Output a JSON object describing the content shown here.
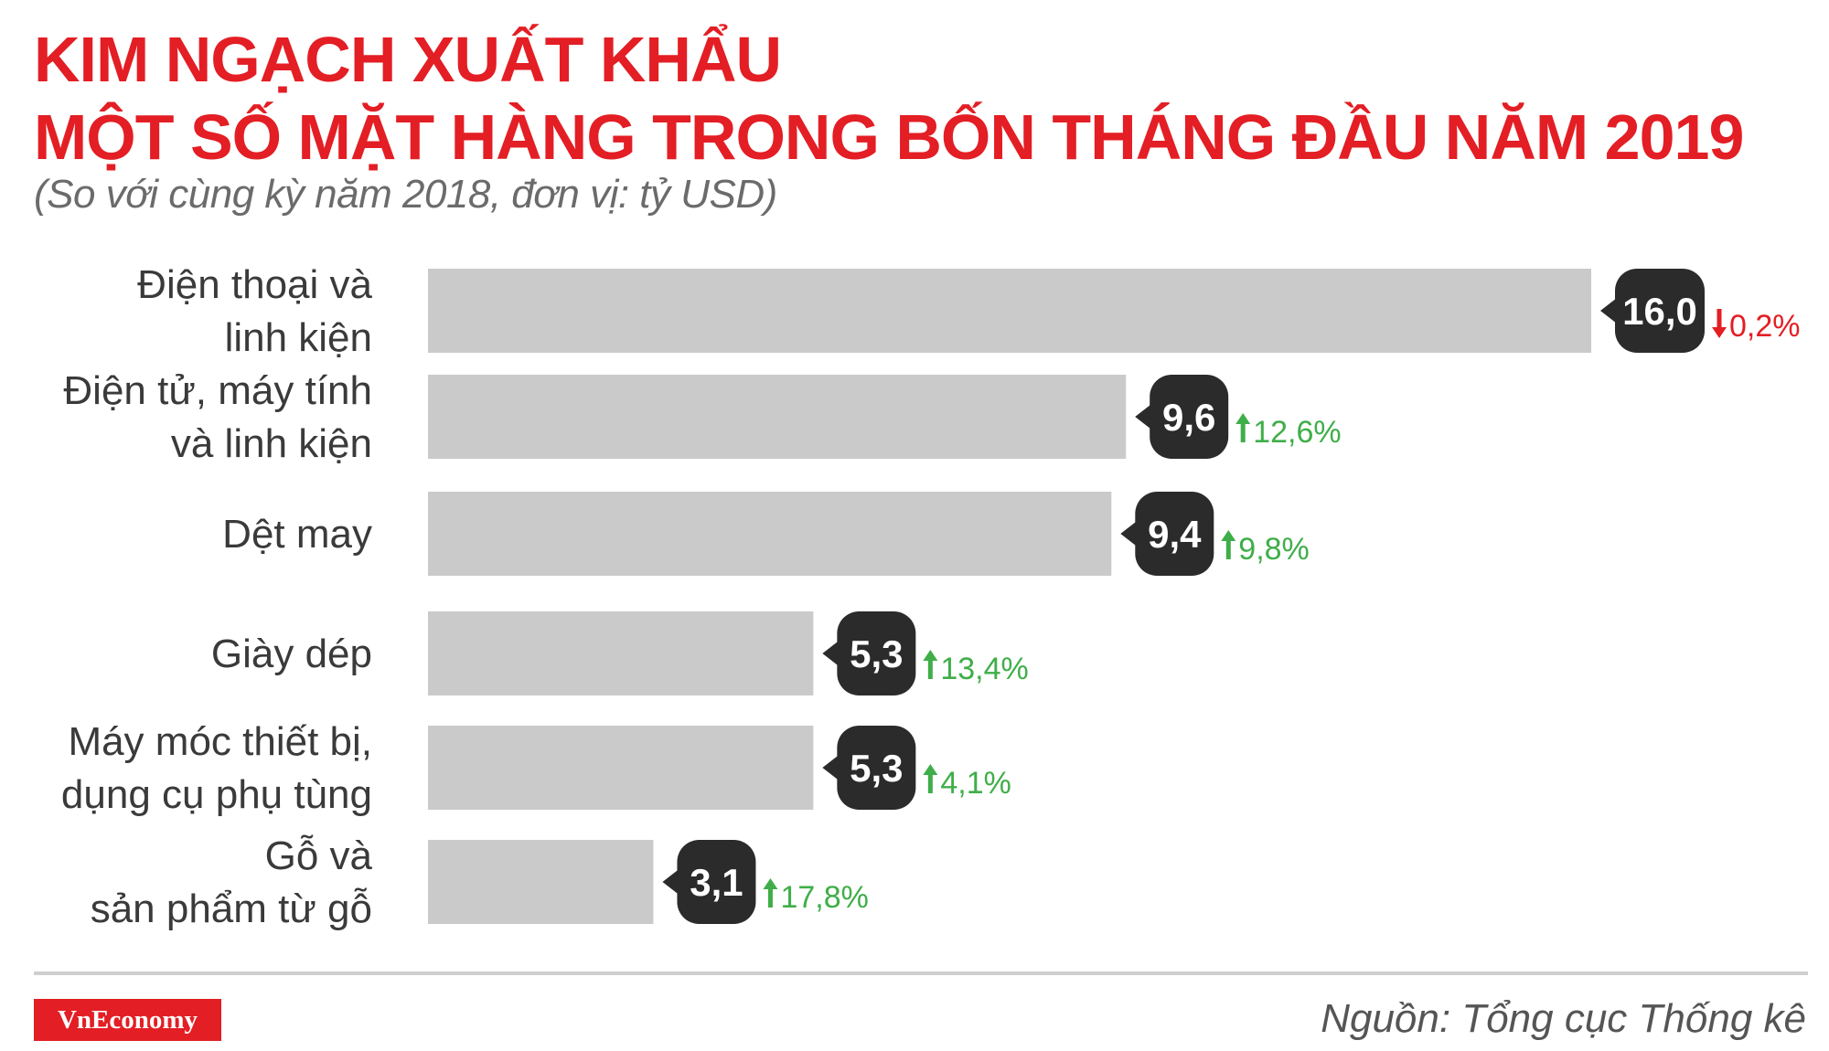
{
  "title_line1": "KIM NGẠCH XUẤT KHẨU",
  "title_line2": "MỘT SỐ MẶT HÀNG TRONG BỐN THÁNG ĐẦU NĂM 2019",
  "subtitle": "(So với cùng kỳ năm 2018, đơn vị: tỷ USD)",
  "source": "Nguồn: Tổng cục Thống kê",
  "logo": "VnEconomy",
  "colors": {
    "title": "#e31e24",
    "bar": "#cbcacb",
    "value_bubble": "#2b2b2b",
    "increase": "#3fae49",
    "decrease": "#e31e24"
  },
  "chart_data": {
    "type": "bar",
    "orientation": "horizontal",
    "categories": [
      [
        "Điện thoại và",
        "linh kiện"
      ],
      [
        "Điện tử, máy tính",
        "và linh kiện"
      ],
      [
        "Dệt may"
      ],
      [
        "Giày dép"
      ],
      [
        "Máy móc thiết bị,",
        "dụng cụ phụ tùng"
      ],
      [
        "Gỗ và",
        "sản phẩm từ gỗ"
      ]
    ],
    "values": [
      16.0,
      9.6,
      9.4,
      5.3,
      5.3,
      3.1
    ],
    "value_labels": [
      "16,0",
      "9,6",
      "9,4",
      "5,3",
      "5,3",
      "3,1"
    ],
    "change_labels": [
      "0,2%",
      "12,6%",
      "9,8%",
      "13,4%",
      "4,1%",
      "17,8%"
    ],
    "change_direction": [
      "down",
      "up",
      "up",
      "up",
      "up",
      "up"
    ],
    "xlim": [
      0,
      16.0
    ],
    "grid": false,
    "legend": "none"
  }
}
